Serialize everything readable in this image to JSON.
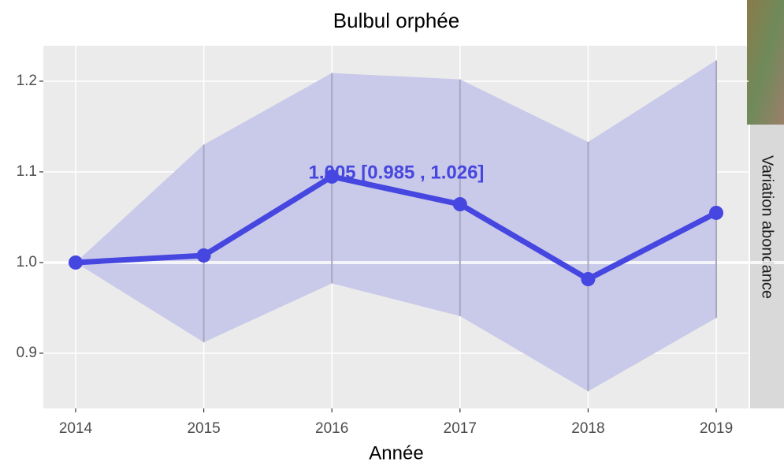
{
  "chart_data": {
    "type": "line",
    "title": "Bulbul orphée",
    "x_label": "Année",
    "strip_label": "Variation abondance",
    "annotation": "1.005  [0.985 , 1.026]",
    "x": [
      2014,
      2015,
      2016,
      2017,
      2018,
      2019
    ],
    "values": [
      1.0,
      1.0078,
      1.0948,
      1.0643,
      0.9817,
      1.0548
    ],
    "lower": [
      1.0,
      0.912,
      0.977,
      0.941,
      0.858,
      0.939
    ],
    "upper": [
      1.0,
      1.13,
      1.209,
      1.202,
      1.133,
      1.223
    ],
    "color": "#4646e0",
    "band_color": "#c9c9ea",
    "reference_line": 1.0,
    "xlim": [
      2013.748,
      2019.252
    ],
    "xticks": [
      2014,
      2015,
      2016,
      2017,
      2018,
      2019
    ],
    "ylim": [
      0.8391,
      1.2391
    ],
    "yticks": [
      0.9,
      {
        "value": 1.0,
        "label": "1.0"
      },
      1.1,
      1.2
    ],
    "grid": true
  }
}
